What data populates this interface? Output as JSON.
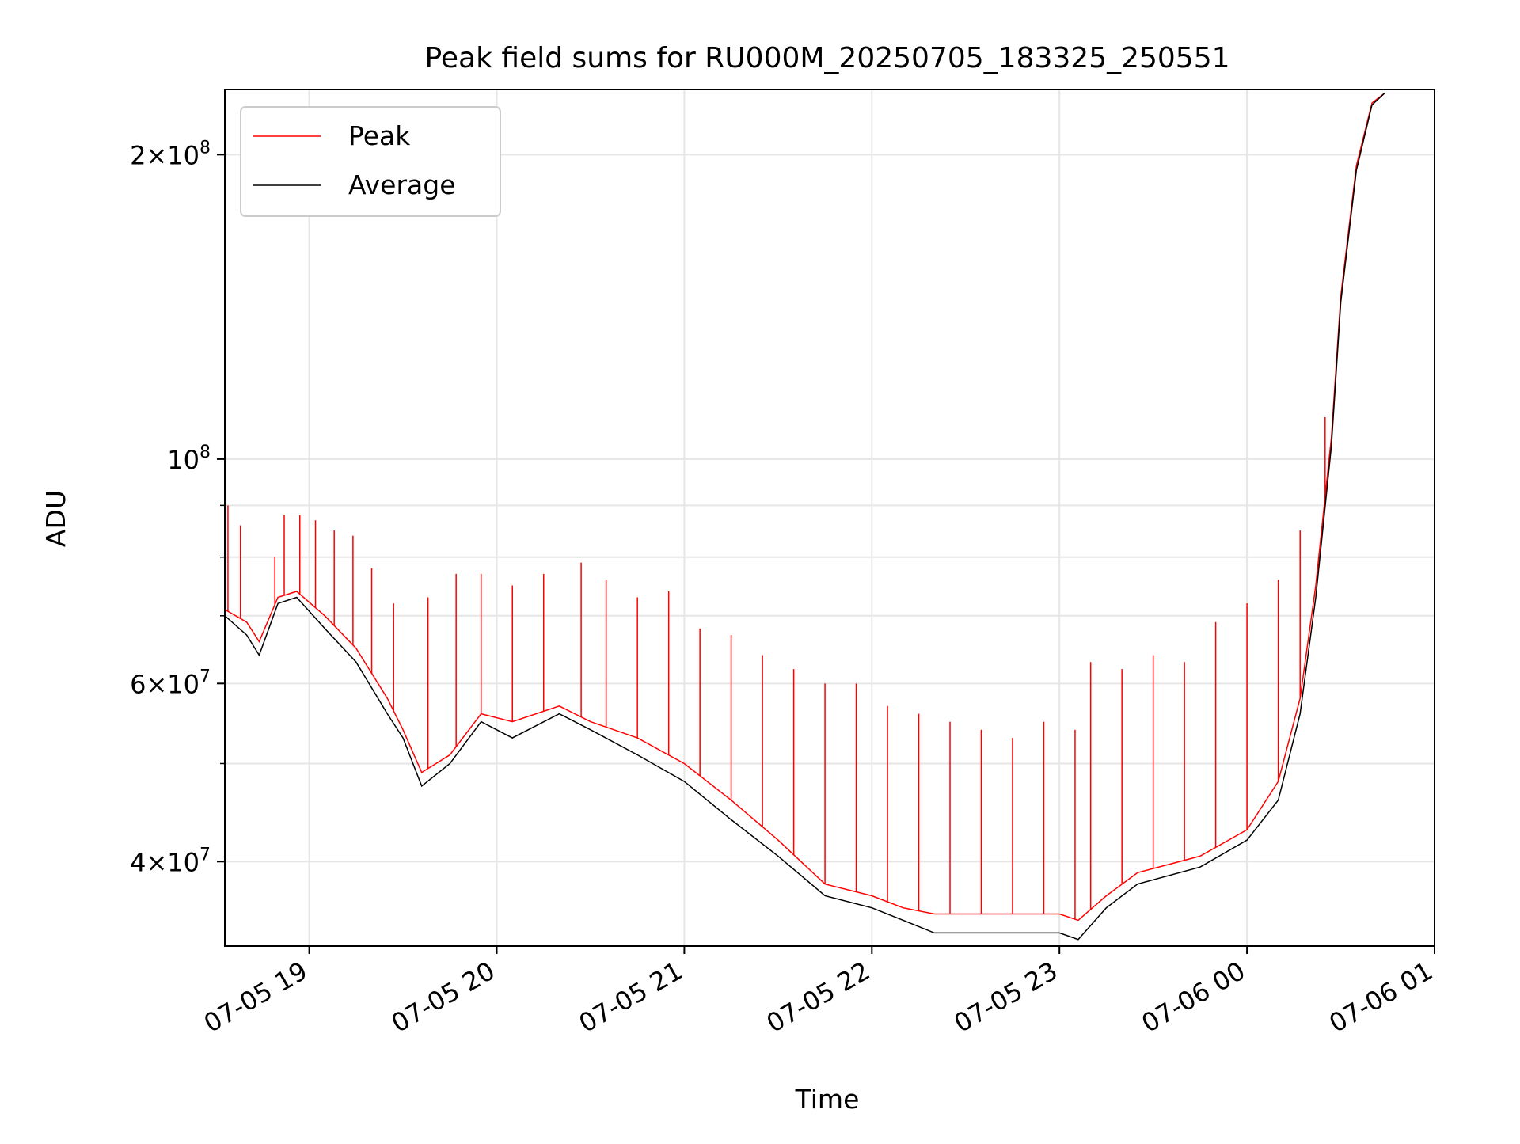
{
  "chart_data": {
    "type": "line",
    "title": "Peak field sums for RU000M_20250705_183325_250551",
    "xlabel": "Time",
    "ylabel": "ADU",
    "y_scale": "log",
    "ylim": [
      33000000,
      232000000
    ],
    "xlim": [
      "2025-07-05 18:33",
      "2025-07-06 01:00"
    ],
    "grid": true,
    "legend_position": "upper-left",
    "x_ticks": [
      {
        "t": "2025-07-05 19:00",
        "label": "07-05 19"
      },
      {
        "t": "2025-07-05 20:00",
        "label": "07-05 20"
      },
      {
        "t": "2025-07-05 21:00",
        "label": "07-05 21"
      },
      {
        "t": "2025-07-05 22:00",
        "label": "07-05 22"
      },
      {
        "t": "2025-07-05 23:00",
        "label": "07-05 23"
      },
      {
        "t": "2025-07-06 00:00",
        "label": "07-06 00"
      },
      {
        "t": "2025-07-06 01:00",
        "label": "07-06 01"
      }
    ],
    "y_ticks_major": [
      {
        "value": 40000000,
        "mantissa": "4",
        "exp": "7"
      },
      {
        "value": 60000000,
        "mantissa": "6",
        "exp": "7"
      },
      {
        "value": 100000000,
        "mantissa": "",
        "exp": "8"
      },
      {
        "value": 200000000,
        "mantissa": "2",
        "exp": "8"
      }
    ],
    "y_ticks_minor": [
      50000000,
      70000000,
      80000000,
      90000000
    ],
    "series": [
      {
        "name": "Peak",
        "color": "#ff0000",
        "x": [
          "2025-07-05 18:33",
          "2025-07-05 18:40",
          "2025-07-05 18:44",
          "2025-07-05 18:50",
          "2025-07-05 18:56",
          "2025-07-05 19:05",
          "2025-07-05 19:15",
          "2025-07-05 19:25",
          "2025-07-05 19:30",
          "2025-07-05 19:36",
          "2025-07-05 19:45",
          "2025-07-05 19:55",
          "2025-07-05 20:05",
          "2025-07-05 20:20",
          "2025-07-05 20:30",
          "2025-07-05 20:45",
          "2025-07-05 21:00",
          "2025-07-05 21:15",
          "2025-07-05 21:30",
          "2025-07-05 21:45",
          "2025-07-05 22:00",
          "2025-07-05 22:10",
          "2025-07-05 22:20",
          "2025-07-05 22:40",
          "2025-07-05 23:00",
          "2025-07-05 23:06",
          "2025-07-05 23:15",
          "2025-07-05 23:25",
          "2025-07-05 23:45",
          "2025-07-06 00:00",
          "2025-07-06 00:10",
          "2025-07-06 00:17",
          "2025-07-06 00:22",
          "2025-07-06 00:27",
          "2025-07-06 00:30",
          "2025-07-06 00:35",
          "2025-07-06 00:40",
          "2025-07-06 00:44"
        ],
        "values": [
          71000000,
          69000000,
          66000000,
          73000000,
          74000000,
          70000000,
          65000000,
          58000000,
          54000000,
          49000000,
          51000000,
          56000000,
          55000000,
          57000000,
          55000000,
          53000000,
          50000000,
          46000000,
          42000000,
          38000000,
          37000000,
          36000000,
          35500000,
          35500000,
          35500000,
          35000000,
          37000000,
          39000000,
          40500000,
          43000000,
          48000000,
          58000000,
          75000000,
          105000000,
          145000000,
          195000000,
          225000000,
          230000000
        ],
        "spikes": [
          [
            "2025-07-05 18:34",
            90000000
          ],
          [
            "2025-07-05 18:38",
            86000000
          ],
          [
            "2025-07-05 18:49",
            80000000
          ],
          [
            "2025-07-05 18:52",
            88000000
          ],
          [
            "2025-07-05 18:57",
            88000000
          ],
          [
            "2025-07-05 19:02",
            87000000
          ],
          [
            "2025-07-05 19:08",
            85000000
          ],
          [
            "2025-07-05 19:14",
            84000000
          ],
          [
            "2025-07-05 19:20",
            78000000
          ],
          [
            "2025-07-05 19:27",
            72000000
          ],
          [
            "2025-07-05 19:38",
            73000000
          ],
          [
            "2025-07-05 19:47",
            77000000
          ],
          [
            "2025-07-05 19:55",
            77000000
          ],
          [
            "2025-07-05 20:05",
            75000000
          ],
          [
            "2025-07-05 20:15",
            77000000
          ],
          [
            "2025-07-05 20:27",
            79000000
          ],
          [
            "2025-07-05 20:35",
            76000000
          ],
          [
            "2025-07-05 20:45",
            73000000
          ],
          [
            "2025-07-05 20:55",
            74000000
          ],
          [
            "2025-07-05 21:05",
            68000000
          ],
          [
            "2025-07-05 21:15",
            67000000
          ],
          [
            "2025-07-05 21:25",
            64000000
          ],
          [
            "2025-07-05 21:35",
            62000000
          ],
          [
            "2025-07-05 21:45",
            60000000
          ],
          [
            "2025-07-05 21:55",
            60000000
          ],
          [
            "2025-07-05 22:05",
            57000000
          ],
          [
            "2025-07-05 22:15",
            56000000
          ],
          [
            "2025-07-05 22:25",
            55000000
          ],
          [
            "2025-07-05 22:35",
            54000000
          ],
          [
            "2025-07-05 22:45",
            53000000
          ],
          [
            "2025-07-05 22:55",
            55000000
          ],
          [
            "2025-07-05 23:05",
            54000000
          ],
          [
            "2025-07-05 23:10",
            63000000
          ],
          [
            "2025-07-05 23:20",
            62000000
          ],
          [
            "2025-07-05 23:30",
            64000000
          ],
          [
            "2025-07-05 23:40",
            63000000
          ],
          [
            "2025-07-05 23:50",
            69000000
          ],
          [
            "2025-07-06 00:00",
            72000000
          ],
          [
            "2025-07-06 00:10",
            76000000
          ],
          [
            "2025-07-06 00:17",
            85000000
          ],
          [
            "2025-07-06 00:25",
            110000000
          ]
        ]
      },
      {
        "name": "Average",
        "color": "#000000",
        "x": [
          "2025-07-05 18:33",
          "2025-07-05 18:40",
          "2025-07-05 18:44",
          "2025-07-05 18:50",
          "2025-07-05 18:56",
          "2025-07-05 19:05",
          "2025-07-05 19:15",
          "2025-07-05 19:25",
          "2025-07-05 19:30",
          "2025-07-05 19:36",
          "2025-07-05 19:45",
          "2025-07-05 19:55",
          "2025-07-05 20:05",
          "2025-07-05 20:20",
          "2025-07-05 20:30",
          "2025-07-05 20:45",
          "2025-07-05 21:00",
          "2025-07-05 21:15",
          "2025-07-05 21:30",
          "2025-07-05 21:45",
          "2025-07-05 22:00",
          "2025-07-05 22:10",
          "2025-07-05 22:20",
          "2025-07-05 22:40",
          "2025-07-05 23:00",
          "2025-07-05 23:06",
          "2025-07-05 23:15",
          "2025-07-05 23:25",
          "2025-07-05 23:45",
          "2025-07-06 00:00",
          "2025-07-06 00:10",
          "2025-07-06 00:17",
          "2025-07-06 00:22",
          "2025-07-06 00:27",
          "2025-07-06 00:30",
          "2025-07-06 00:35",
          "2025-07-06 00:40",
          "2025-07-06 00:44"
        ],
        "values": [
          70000000,
          67000000,
          64000000,
          72000000,
          73000000,
          68000000,
          63000000,
          56000000,
          53000000,
          47500000,
          50000000,
          55000000,
          53000000,
          56000000,
          54000000,
          51000000,
          48000000,
          44000000,
          40500000,
          37000000,
          36000000,
          35000000,
          34000000,
          34000000,
          34000000,
          33500000,
          36000000,
          38000000,
          39500000,
          42000000,
          46000000,
          56000000,
          73000000,
          103000000,
          143000000,
          193000000,
          224000000,
          230000000
        ]
      }
    ]
  }
}
